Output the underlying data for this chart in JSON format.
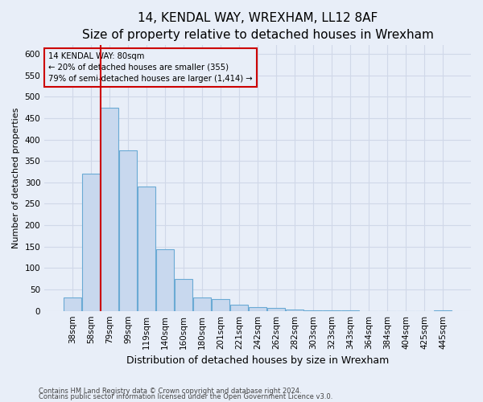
{
  "title": "14, KENDAL WAY, WREXHAM, LL12 8AF",
  "subtitle": "Size of property relative to detached houses in Wrexham",
  "xlabel": "Distribution of detached houses by size in Wrexham",
  "ylabel": "Number of detached properties",
  "bar_labels": [
    "38sqm",
    "58sqm",
    "79sqm",
    "99sqm",
    "119sqm",
    "140sqm",
    "160sqm",
    "180sqm",
    "201sqm",
    "221sqm",
    "242sqm",
    "262sqm",
    "282sqm",
    "303sqm",
    "323sqm",
    "343sqm",
    "364sqm",
    "384sqm",
    "404sqm",
    "425sqm",
    "445sqm"
  ],
  "bar_values": [
    32,
    320,
    475,
    375,
    290,
    143,
    75,
    31,
    28,
    15,
    8,
    6,
    3,
    2,
    1,
    1,
    0,
    0,
    0,
    0,
    2
  ],
  "bar_color": "#c8d8ee",
  "bar_edge_color": "#6aaad4",
  "property_line_x": 2.0,
  "annotation_label": "14 KENDAL WAY: 80sqm",
  "annotation_line1": "← 20% of detached houses are smaller (355)",
  "annotation_line2": "79% of semi-detached houses are larger (1,414) →",
  "annotation_box_color": "#cc0000",
  "ylim": [
    0,
    620
  ],
  "yticks": [
    0,
    50,
    100,
    150,
    200,
    250,
    300,
    350,
    400,
    450,
    500,
    550,
    600
  ],
  "footnote1": "Contains HM Land Registry data © Crown copyright and database right 2024.",
  "footnote2": "Contains public sector information licensed under the Open Government Licence v3.0.",
  "bg_color": "#e8eef8",
  "grid_color": "#d0d8e8",
  "title_fontsize": 11,
  "ylabel_fontsize": 8,
  "xlabel_fontsize": 9,
  "tick_fontsize": 7.5,
  "footnote_fontsize": 6
}
